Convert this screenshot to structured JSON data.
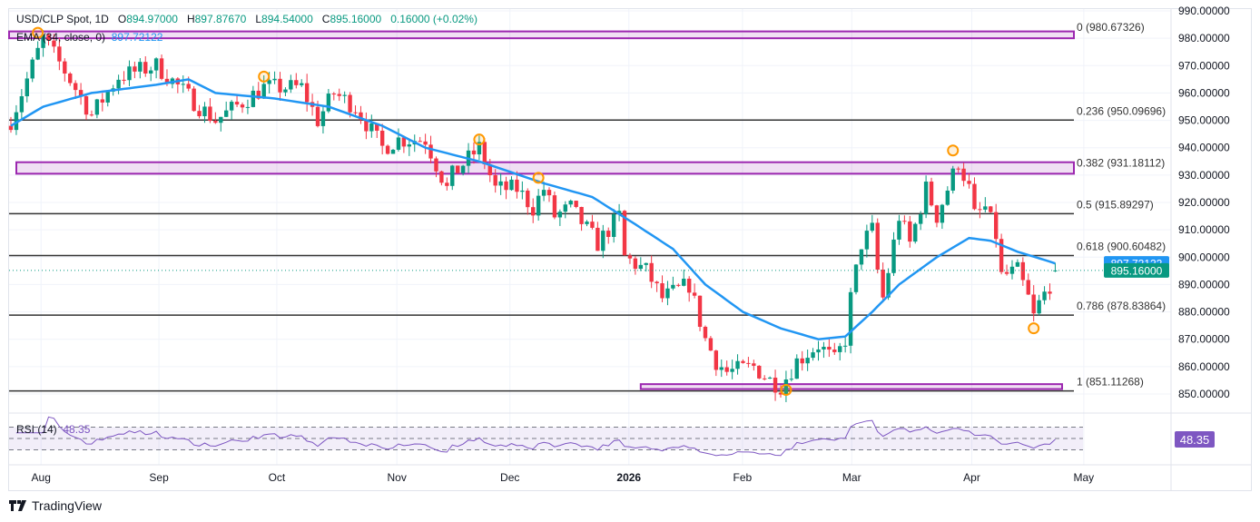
{
  "header": {
    "symbol": "USD/CLP Spot, 1D",
    "open_label": "O",
    "open": "894.97000",
    "high_label": "H",
    "high": "897.87670",
    "low_label": "L",
    "low": "894.54000",
    "close_label": "C",
    "close": "895.16000",
    "change": "0.16000 (+0.02%)"
  },
  "ema_legend": {
    "label": "EMA (34, close, 0)",
    "value": "897.72122"
  },
  "rsi_legend": {
    "label": "RSI (14)",
    "value": "48.35"
  },
  "brand": "TradingView",
  "colors": {
    "up": "#089981",
    "down": "#f23645",
    "ema": "#2196f3",
    "rsi": "#7e57c2",
    "fib_zone": "#9c27b0",
    "marker": "#ff9800"
  },
  "chart_data": {
    "type": "candlestick",
    "title": "USD/CLP Spot, 1D",
    "ylim": [
      848,
      992
    ],
    "y_ticks": [
      "850.00000",
      "860.00000",
      "870.00000",
      "880.00000",
      "890.00000",
      "900.00000",
      "910.00000",
      "920.00000",
      "930.00000",
      "940.00000",
      "950.00000",
      "960.00000",
      "970.00000",
      "980.00000",
      "990.00000"
    ],
    "x_ticks": [
      {
        "label": "Aug",
        "i": 5.6
      },
      {
        "label": "Sep",
        "i": 27.5
      },
      {
        "label": "Oct",
        "i": 49.4
      },
      {
        "label": "Nov",
        "i": 71.7
      },
      {
        "label": "Dec",
        "i": 92.7
      },
      {
        "label": "2026",
        "i": 114.8,
        "bold": true
      },
      {
        "label": "Feb",
        "i": 135.9
      },
      {
        "label": "Mar",
        "i": 156.2
      },
      {
        "label": "Apr",
        "i": 178.5
      },
      {
        "label": "May",
        "i": 199.3
      }
    ],
    "candle_count": 195,
    "close_waypoints": [
      [
        0,
        950
      ],
      [
        6,
        980
      ],
      [
        10,
        968
      ],
      [
        15,
        952
      ],
      [
        20,
        966
      ],
      [
        27,
        970
      ],
      [
        35,
        955
      ],
      [
        38,
        950
      ],
      [
        44,
        958
      ],
      [
        47,
        962
      ],
      [
        54,
        962
      ],
      [
        57,
        950
      ],
      [
        60,
        960
      ],
      [
        64,
        955
      ],
      [
        69,
        940
      ],
      [
        72,
        943
      ],
      [
        77,
        943
      ],
      [
        81,
        925
      ],
      [
        82,
        930
      ],
      [
        87,
        940
      ],
      [
        90,
        925
      ],
      [
        94,
        925
      ],
      [
        97,
        918
      ],
      [
        99,
        925
      ],
      [
        101,
        915
      ],
      [
        104,
        918
      ],
      [
        109,
        905
      ],
      [
        113,
        915
      ],
      [
        114,
        900
      ],
      [
        118,
        895
      ],
      [
        121,
        885
      ],
      [
        126,
        890
      ],
      [
        129,
        870
      ],
      [
        131,
        862
      ],
      [
        133,
        858
      ],
      [
        138,
        860
      ],
      [
        141,
        855
      ],
      [
        143,
        853
      ],
      [
        146,
        862
      ],
      [
        150,
        868
      ],
      [
        153,
        862
      ],
      [
        155,
        870
      ],
      [
        156,
        885
      ],
      [
        158,
        905
      ],
      [
        160,
        910
      ],
      [
        161,
        895
      ],
      [
        162,
        885
      ],
      [
        165,
        915
      ],
      [
        167,
        905
      ],
      [
        170,
        925
      ],
      [
        172,
        915
      ],
      [
        174,
        925
      ],
      [
        176,
        935
      ],
      [
        178,
        925
      ],
      [
        179,
        915
      ],
      [
        181,
        918
      ],
      [
        183,
        908
      ],
      [
        184,
        893
      ],
      [
        187,
        895
      ],
      [
        189,
        885
      ],
      [
        190,
        878
      ],
      [
        191,
        883
      ],
      [
        193,
        890
      ],
      [
        194,
        895.16
      ]
    ],
    "last_candle": {
      "o": 894.97,
      "h": 897.8767,
      "l": 894.54,
      "c": 895.16
    },
    "ema": {
      "period": 34,
      "last": 897.72122,
      "waypoints": [
        [
          0,
          948
        ],
        [
          6,
          955
        ],
        [
          15,
          960
        ],
        [
          27,
          963
        ],
        [
          33,
          965
        ],
        [
          38,
          960
        ],
        [
          49,
          958
        ],
        [
          59,
          955
        ],
        [
          69,
          948
        ],
        [
          77,
          940
        ],
        [
          87,
          935
        ],
        [
          99,
          927
        ],
        [
          108,
          922
        ],
        [
          116,
          912
        ],
        [
          123,
          903
        ],
        [
          129,
          890
        ],
        [
          136,
          880
        ],
        [
          143,
          874
        ],
        [
          150,
          870
        ],
        [
          155,
          871
        ],
        [
          160,
          880
        ],
        [
          165,
          890
        ],
        [
          172,
          900
        ],
        [
          178,
          907
        ],
        [
          182,
          906
        ],
        [
          187,
          902
        ],
        [
          192,
          899
        ],
        [
          194,
          897.72122
        ]
      ]
    },
    "fib_levels": [
      {
        "label": "0 (980.67326)",
        "value": 980.67326,
        "zone": [
          980.0,
          982.5
        ]
      },
      {
        "label": "0.236 (950.09696)",
        "value": 950.09696
      },
      {
        "label": "0.382 (931.18112)",
        "value": 931.18112,
        "zone": [
          930.5,
          934.7
        ]
      },
      {
        "label": "0.5 (915.89297)",
        "value": 915.89297
      },
      {
        "label": "0.618 (900.60482)",
        "value": 900.60482
      },
      {
        "label": "0.786 (878.83864)",
        "value": 878.83864
      },
      {
        "label": "1 (851.11268)",
        "value": 851.11268,
        "zone": [
          851.8,
          853.6
        ],
        "zone_from_i": 117
      }
    ],
    "pivot_markers": [
      [
        5,
        982
      ],
      [
        47,
        966
      ],
      [
        87,
        943
      ],
      [
        98,
        929
      ],
      [
        144,
        851.5
      ],
      [
        175,
        939
      ],
      [
        190,
        874
      ]
    ],
    "price_labels": [
      {
        "value": "897.72122",
        "kind": "ema"
      },
      {
        "value": "895.16000",
        "kind": "close"
      }
    ],
    "rsi": {
      "period": 14,
      "last": "48.35",
      "levels": [
        30,
        50,
        70
      ],
      "ylim": [
        10,
        90
      ]
    }
  }
}
